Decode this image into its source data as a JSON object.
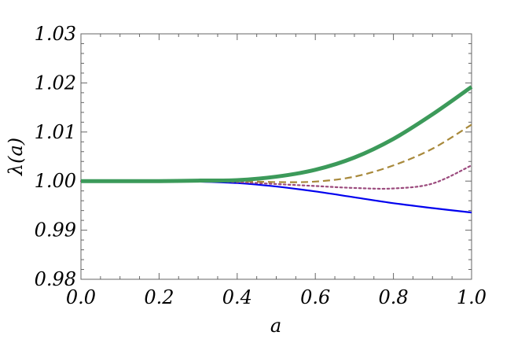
{
  "chart_data": {
    "type": "line",
    "title": "",
    "xlabel": "a",
    "ylabel": "λ(a)",
    "xlim": [
      0.0,
      1.0
    ],
    "ylim": [
      0.98,
      1.03
    ],
    "grid": false,
    "x_ticks": [
      0.0,
      0.2,
      0.4,
      0.6,
      0.8,
      1.0
    ],
    "x_tick_labels": [
      "0.0",
      "0.2",
      "0.4",
      "0.6",
      "0.8",
      "1.0"
    ],
    "y_ticks": [
      0.98,
      0.99,
      1.0,
      1.01,
      1.02,
      1.03
    ],
    "y_tick_labels": [
      "0.98",
      "0.99",
      "1.00",
      "1.01",
      "1.02",
      "1.03"
    ],
    "series": [
      {
        "color": "#0000ee",
        "style": "solid",
        "x": [
          0.0,
          0.1,
          0.2,
          0.3,
          0.4,
          0.5,
          0.6,
          0.7,
          0.8,
          0.9,
          1.0
        ],
        "y": [
          1.0,
          1.0,
          1.0,
          0.9999,
          0.9996,
          0.9989,
          0.9979,
          0.9967,
          0.9955,
          0.9945,
          0.9936
        ]
      },
      {
        "color": "#9b4a7d",
        "style": "dotted",
        "x": [
          0.0,
          0.1,
          0.2,
          0.3,
          0.4,
          0.5,
          0.6,
          0.7,
          0.8,
          0.9,
          1.0
        ],
        "y": [
          1.0,
          1.0,
          1.0,
          1.0,
          0.9998,
          0.9994,
          0.999,
          0.9986,
          0.9985,
          0.9995,
          1.0032
        ]
      },
      {
        "color": "#a8893b",
        "style": "dashed",
        "x": [
          0.0,
          0.1,
          0.2,
          0.3,
          0.4,
          0.5,
          0.6,
          0.7,
          0.8,
          0.9,
          1.0
        ],
        "y": [
          1.0,
          1.0,
          1.0,
          1.0,
          1.0,
          0.9998,
          0.9999,
          1.0009,
          1.0032,
          1.0066,
          1.0115
        ]
      },
      {
        "color": "#3c9a5a",
        "style": "thick",
        "x": [
          0.0,
          0.1,
          0.2,
          0.3,
          0.4,
          0.5,
          0.6,
          0.7,
          0.8,
          0.9,
          1.0
        ],
        "y": [
          1.0,
          1.0,
          1.0,
          1.0001,
          1.0002,
          1.0009,
          1.0023,
          1.0048,
          1.0086,
          1.0136,
          1.0192
        ]
      }
    ]
  }
}
